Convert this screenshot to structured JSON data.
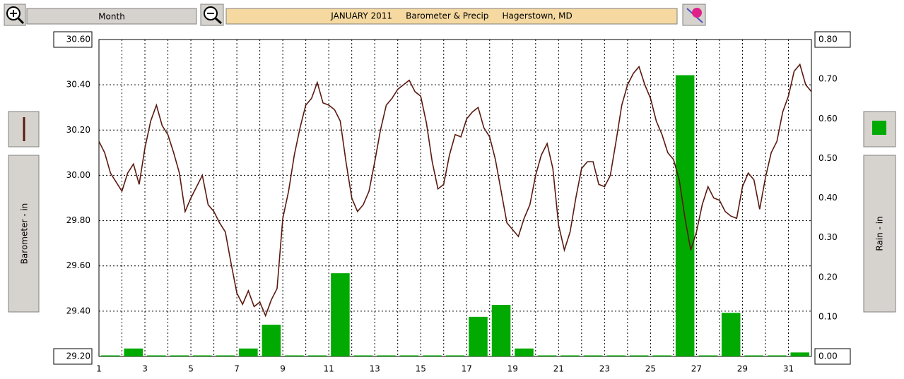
{
  "toolbar": {
    "period": "Month"
  },
  "chart_data": {
    "type": "line",
    "title": "JANUARY 2011     Barometer & Precip     Hagerstown, MD",
    "y_label": "Barometer - in",
    "y2_label": "Rain - in",
    "xlim": [
      1,
      32
    ],
    "xticks": [
      1,
      3,
      5,
      7,
      9,
      11,
      13,
      15,
      17,
      19,
      21,
      23,
      25,
      27,
      29,
      31
    ],
    "x_minor_ticks": [
      2,
      4,
      6,
      8,
      10,
      12,
      14,
      16,
      18,
      20,
      22,
      24,
      26,
      28,
      30,
      32
    ],
    "ylim": [
      29.2,
      30.6
    ],
    "yticks": [
      {
        "value": 29.2,
        "label": "29.20"
      },
      {
        "value": 29.4,
        "label": "29.40"
      },
      {
        "value": 29.6,
        "label": "29.60"
      },
      {
        "value": 29.8,
        "label": "29.80"
      },
      {
        "value": 30.0,
        "label": "30.00"
      },
      {
        "value": 30.2,
        "label": "30.20"
      },
      {
        "value": 30.4,
        "label": "30.40"
      },
      {
        "value": 30.6,
        "label": "30.60"
      }
    ],
    "y2lim": [
      0,
      0.8
    ],
    "y2ticks": [
      {
        "value": 0,
        "label": "0.00"
      },
      {
        "value": 0.1,
        "label": "0.10"
      },
      {
        "value": 0.2,
        "label": "0.20"
      },
      {
        "value": 0.3,
        "label": "0.30"
      },
      {
        "value": 0.4,
        "label": "0.40"
      },
      {
        "value": 0.5,
        "label": "0.50"
      },
      {
        "value": 0.6,
        "label": "0.60"
      },
      {
        "value": 0.7,
        "label": "0.70"
      },
      {
        "value": 0.8,
        "label": "0.80"
      }
    ],
    "grid": true,
    "series": [
      {
        "type": "bar",
        "axis": "y2",
        "color": "#00aa00",
        "x": [
          1,
          2,
          3,
          4,
          5,
          6,
          7,
          8,
          9,
          10,
          11,
          12,
          13,
          14,
          15,
          16,
          17,
          18,
          19,
          20,
          21,
          22,
          23,
          24,
          25,
          26,
          27,
          28,
          29,
          30,
          31
        ],
        "values": [
          0,
          0.02,
          0,
          0,
          0,
          0,
          0.02,
          0.08,
          0,
          0,
          0.21,
          0,
          0,
          0,
          0,
          0,
          0.1,
          0.13,
          0.02,
          0,
          0,
          0,
          0,
          0,
          0,
          0.71,
          0,
          0.11,
          0,
          0,
          0.01
        ]
      },
      {
        "type": "line",
        "axis": "y",
        "color": "#5a1a10",
        "x": [
          1,
          1.25,
          1.5,
          1.75,
          2,
          2.25,
          2.5,
          2.75,
          3,
          3.25,
          3.5,
          3.75,
          4,
          4.25,
          4.5,
          4.75,
          5,
          5.25,
          5.5,
          5.75,
          6,
          6.25,
          6.5,
          6.75,
          7,
          7.25,
          7.5,
          7.75,
          8,
          8.25,
          8.5,
          8.75,
          9,
          9.25,
          9.5,
          9.75,
          10,
          10.25,
          10.5,
          10.75,
          11,
          11.25,
          11.5,
          11.75,
          12,
          12.25,
          12.5,
          12.75,
          13,
          13.25,
          13.5,
          13.75,
          14,
          14.25,
          14.5,
          14.75,
          15,
          15.25,
          15.5,
          15.75,
          16,
          16.25,
          16.5,
          16.75,
          17,
          17.25,
          17.5,
          17.75,
          18,
          18.25,
          18.5,
          18.75,
          19,
          19.25,
          19.5,
          19.75,
          20,
          20.25,
          20.5,
          20.75,
          21,
          21.25,
          21.5,
          21.75,
          22,
          22.25,
          22.5,
          22.75,
          23,
          23.25,
          23.5,
          23.75,
          24,
          24.25,
          24.5,
          24.75,
          25,
          25.25,
          25.5,
          25.75,
          26,
          26.25,
          26.5,
          26.75,
          27,
          27.25,
          27.5,
          27.75,
          28,
          28.25,
          28.5,
          28.75,
          29,
          29.25,
          29.5,
          29.75,
          30,
          30.25,
          30.5,
          30.75,
          31,
          31.25,
          31.5,
          31.75,
          32
        ],
        "values": [
          30.15,
          30.1,
          30.01,
          29.97,
          29.93,
          30.01,
          30.05,
          29.96,
          30.12,
          30.24,
          30.31,
          30.22,
          30.18,
          30.1,
          30.01,
          29.84,
          29.9,
          29.95,
          30.0,
          29.87,
          29.84,
          29.79,
          29.75,
          29.61,
          29.48,
          29.43,
          29.49,
          29.42,
          29.44,
          29.38,
          29.45,
          29.5,
          29.81,
          29.93,
          30.09,
          30.21,
          30.31,
          30.34,
          30.41,
          30.32,
          30.31,
          30.29,
          30.24,
          30.06,
          29.9,
          29.84,
          29.87,
          29.93,
          30.06,
          30.2,
          30.31,
          30.34,
          30.38,
          30.4,
          30.42,
          30.37,
          30.35,
          30.23,
          30.06,
          29.94,
          29.96,
          30.09,
          30.18,
          30.17,
          30.25,
          30.28,
          30.3,
          30.21,
          30.17,
          30.07,
          29.93,
          29.79,
          29.76,
          29.73,
          29.81,
          29.87,
          30.0,
          30.09,
          30.14,
          30.03,
          29.78,
          29.67,
          29.75,
          29.9,
          30.03,
          30.06,
          30.06,
          29.96,
          29.95,
          30.0,
          30.15,
          30.31,
          30.4,
          30.45,
          30.48,
          30.4,
          30.34,
          30.24,
          30.18,
          30.1,
          30.07,
          29.98,
          29.81,
          29.67,
          29.75,
          29.87,
          29.95,
          29.9,
          29.89,
          29.84,
          29.82,
          29.81,
          29.95,
          30.01,
          29.98,
          29.85,
          29.99,
          30.1,
          30.15,
          30.28,
          30.35,
          30.46,
          30.49,
          30.4,
          30.37
        ]
      }
    ]
  }
}
